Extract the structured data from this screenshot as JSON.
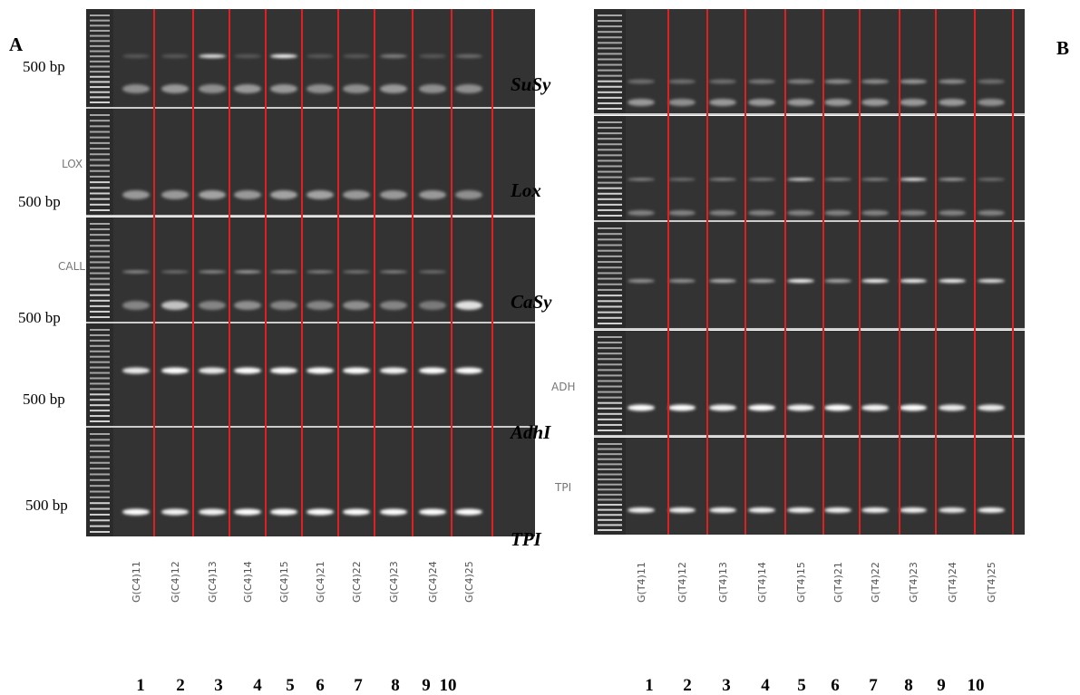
{
  "panels": [
    {
      "letter": "A",
      "size_labels": [
        "500 bp",
        "500 bp",
        "500 bp",
        "500 bp",
        "500 bp"
      ],
      "gel_labels": [
        "LOX",
        "CALL"
      ],
      "lanes": [
        "G(C4)11",
        "G(C4)12",
        "G(C4)13",
        "G(C4)14",
        "G(C4)15",
        "G(C4)21",
        "G(C4)22",
        "G(C4)23",
        "G(C4)24",
        "G(C4)25"
      ],
      "lane_numbers": [
        "1",
        "2",
        "3",
        "4",
        "5",
        "6",
        "7",
        "8",
        "9",
        "10"
      ]
    },
    {
      "letter": "B",
      "genes": [
        "SuSy",
        "Lox",
        "CaSy",
        "AdhI",
        "TPI"
      ],
      "gel_labels": [
        "ADH",
        "TPI"
      ],
      "lanes": [
        "G(T4)11",
        "G(T4)12",
        "G(T4)13",
        "G(T4)14",
        "G(T4)15",
        "G(T4)21",
        "G(T4)22",
        "G(T4)23",
        "G(T4)24",
        "G(T4)25"
      ],
      "lane_numbers": [
        "1",
        "2",
        "3",
        "4",
        "5",
        "6",
        "7",
        "8",
        "9",
        "10"
      ]
    }
  ]
}
